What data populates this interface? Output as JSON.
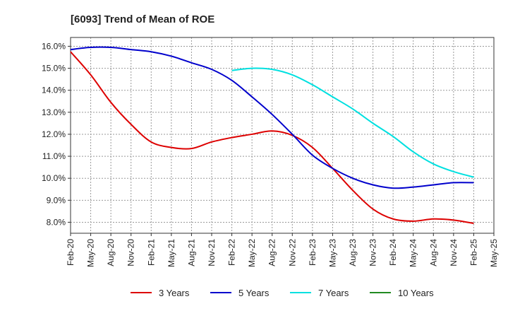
{
  "chart_data": {
    "type": "line",
    "title": "[6093]  Trend of Mean of ROE",
    "xlabel": "",
    "ylabel": "",
    "grid": true,
    "legend_position": "bottom",
    "x": [
      "Feb-20",
      "May-20",
      "Aug-20",
      "Nov-20",
      "Feb-21",
      "May-21",
      "Aug-21",
      "Nov-21",
      "Feb-22",
      "May-22",
      "Aug-22",
      "Nov-22",
      "Feb-23",
      "May-23",
      "Aug-23",
      "Nov-23",
      "Feb-24",
      "May-24",
      "Aug-24",
      "Nov-24",
      "Feb-25",
      "May-25"
    ],
    "ylim": [
      7.5,
      16.4
    ],
    "yticks": [
      8.0,
      9.0,
      10.0,
      11.0,
      12.0,
      13.0,
      14.0,
      15.0,
      16.0
    ],
    "ytick_labels": [
      "8.0%",
      "9.0%",
      "10.0%",
      "11.0%",
      "12.0%",
      "13.0%",
      "14.0%",
      "15.0%",
      "16.0%"
    ],
    "series": [
      {
        "name": "3 Years",
        "color": "#dd0000",
        "values": [
          15.75,
          14.7,
          13.45,
          12.45,
          11.65,
          11.4,
          11.35,
          11.65,
          11.85,
          12.0,
          12.15,
          11.95,
          11.4,
          10.45,
          9.45,
          8.6,
          8.15,
          8.05,
          8.15,
          8.1,
          7.95,
          null
        ]
      },
      {
        "name": "5 Years",
        "color": "#0000cc",
        "values": [
          15.85,
          15.95,
          15.95,
          15.85,
          15.75,
          15.55,
          15.25,
          14.95,
          14.45,
          13.7,
          12.9,
          12.0,
          11.05,
          10.45,
          10.0,
          9.7,
          9.55,
          9.6,
          9.7,
          9.8,
          9.8,
          null
        ]
      },
      {
        "name": "7 Years",
        "color": "#00e0e0",
        "values": [
          null,
          null,
          null,
          null,
          null,
          null,
          null,
          null,
          14.9,
          15.0,
          14.95,
          14.7,
          14.25,
          13.7,
          13.15,
          12.5,
          11.9,
          11.2,
          10.65,
          10.3,
          10.05,
          null
        ]
      },
      {
        "name": "10 Years",
        "color": "#228b22",
        "values": [
          null,
          null,
          null,
          null,
          null,
          null,
          null,
          null,
          null,
          null,
          null,
          null,
          null,
          null,
          null,
          null,
          null,
          null,
          null,
          null,
          null,
          null
        ]
      }
    ]
  }
}
